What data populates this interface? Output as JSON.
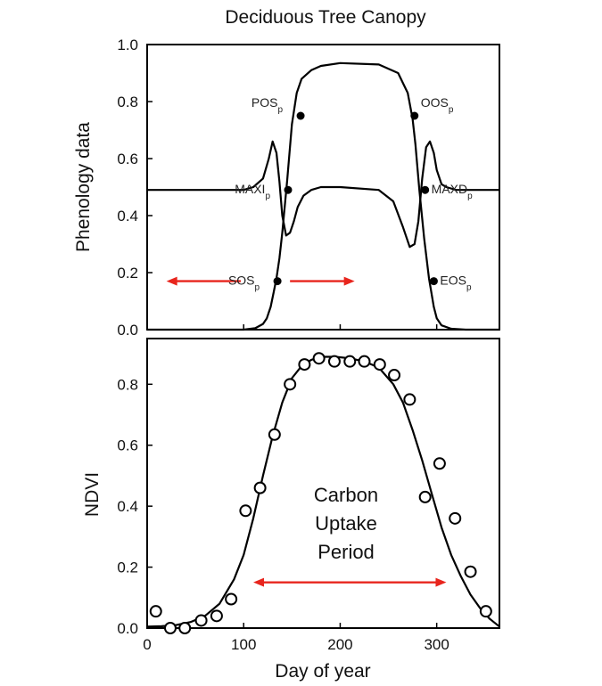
{
  "title": "Deciduous Tree Canopy",
  "colors": {
    "arrow": "#e8251d",
    "line": "#000000"
  },
  "chart_data": [
    {
      "type": "line",
      "panel": "top",
      "ylabel": "Phenology data",
      "xlim": [
        0,
        365
      ],
      "ylim": [
        0,
        1.0
      ],
      "yticks": [
        "0.0",
        "0.2",
        "0.4",
        "0.6",
        "0.8",
        "1.0"
      ],
      "series": [
        {
          "x": [
            0,
            100,
            112,
            120,
            124,
            128,
            131,
            134,
            137,
            140,
            145,
            150,
            155,
            160,
            170,
            180,
            200,
            240,
            260,
            270,
            275,
            278,
            282,
            287,
            292,
            297,
            300,
            305,
            315,
            330,
            345,
            365
          ],
          "y": [
            0.0,
            0.0,
            0.005,
            0.02,
            0.04,
            0.08,
            0.13,
            0.18,
            0.25,
            0.34,
            0.52,
            0.72,
            0.83,
            0.88,
            0.91,
            0.925,
            0.935,
            0.93,
            0.9,
            0.83,
            0.74,
            0.65,
            0.49,
            0.32,
            0.18,
            0.08,
            0.04,
            0.015,
            0.003,
            0.0,
            0.0,
            0.0
          ]
        },
        {
          "x": [
            0,
            100,
            110,
            120,
            126,
            130,
            134,
            137,
            140,
            144,
            148,
            152,
            156,
            162,
            170,
            180,
            200,
            240,
            255,
            265,
            272,
            277,
            281,
            285,
            289,
            293,
            297,
            300,
            305,
            310,
            320,
            340,
            365
          ],
          "y": [
            0.49,
            0.49,
            0.5,
            0.53,
            0.6,
            0.66,
            0.62,
            0.52,
            0.4,
            0.33,
            0.34,
            0.38,
            0.43,
            0.47,
            0.49,
            0.5,
            0.5,
            0.49,
            0.45,
            0.36,
            0.29,
            0.3,
            0.38,
            0.53,
            0.64,
            0.66,
            0.62,
            0.56,
            0.51,
            0.5,
            0.49,
            0.49,
            0.49
          ]
        }
      ],
      "points": [
        {
          "label": "POS",
          "sub": "p",
          "x": 159,
          "y": 0.75
        },
        {
          "label": "MAXI",
          "sub": "p",
          "x": 146,
          "y": 0.49
        },
        {
          "label": "SOS",
          "sub": "p",
          "x": 135,
          "y": 0.17
        },
        {
          "label": "OOS",
          "sub": "p",
          "x": 277,
          "y": 0.75
        },
        {
          "label": "MAXD",
          "sub": "p",
          "x": 288,
          "y": 0.49
        },
        {
          "label": "EOS",
          "sub": "p",
          "x": 297,
          "y": 0.17
        }
      ],
      "arrows": [
        {
          "from": 97,
          "to": 20,
          "y": 0.17
        },
        {
          "from": 148,
          "to": 215,
          "y": 0.17
        }
      ]
    },
    {
      "type": "scatter",
      "panel": "bottom",
      "xlabel": "Day of year",
      "ylabel": "NDVI",
      "xlim": [
        0,
        365
      ],
      "ylim": [
        0,
        0.95
      ],
      "xticks": [
        "0",
        "100",
        "200",
        "300"
      ],
      "yticks": [
        "0.0",
        "0.2",
        "0.4",
        "0.6",
        "0.8"
      ],
      "points": {
        "x": [
          9,
          24,
          39,
          56,
          72,
          87,
          102,
          117,
          132,
          148,
          163,
          178,
          194,
          210,
          225,
          241,
          256,
          272,
          288,
          303,
          319,
          335,
          351
        ],
        "y": [
          0.055,
          0.0,
          0.0,
          0.025,
          0.04,
          0.095,
          0.385,
          0.46,
          0.635,
          0.8,
          0.865,
          0.885,
          0.875,
          0.875,
          0.875,
          0.865,
          0.83,
          0.75,
          0.43,
          0.54,
          0.36,
          0.185,
          0.055
        ]
      },
      "fit": {
        "x": [
          0,
          15,
          30,
          45,
          60,
          75,
          90,
          100,
          110,
          120,
          130,
          140,
          150,
          160,
          170,
          180,
          195,
          210,
          225,
          240,
          255,
          265,
          275,
          285,
          295,
          305,
          315,
          325,
          335,
          345,
          355,
          365
        ],
        "y": [
          0.005,
          0.006,
          0.01,
          0.02,
          0.04,
          0.08,
          0.16,
          0.24,
          0.36,
          0.5,
          0.63,
          0.74,
          0.82,
          0.86,
          0.88,
          0.89,
          0.89,
          0.885,
          0.875,
          0.855,
          0.8,
          0.74,
          0.65,
          0.55,
          0.44,
          0.33,
          0.24,
          0.17,
          0.11,
          0.065,
          0.03,
          0.005
        ]
      },
      "annotation": [
        "Carbon",
        "Uptake",
        "Period"
      ],
      "arrow": {
        "from": 110,
        "to": 310,
        "y": 0.15
      }
    }
  ]
}
